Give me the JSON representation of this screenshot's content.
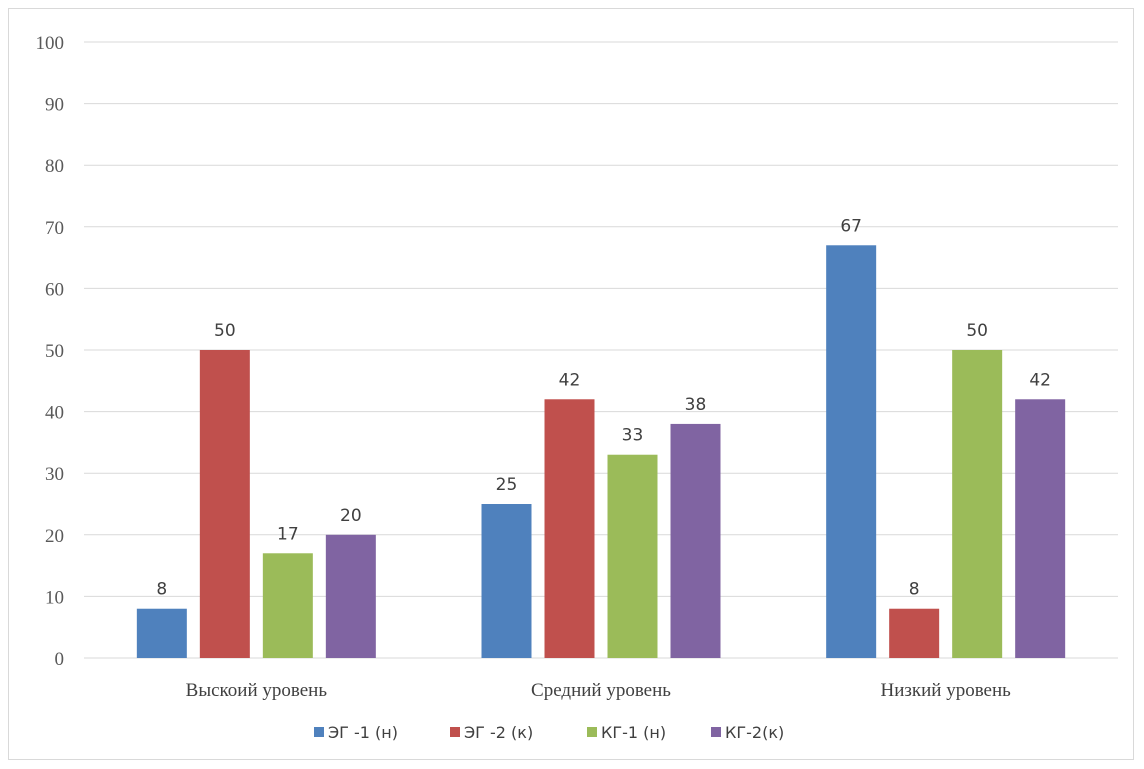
{
  "chart_data": {
    "type": "bar",
    "categories": [
      "Выскоий уровень",
      "Средний уровень",
      "Низкий уровень"
    ],
    "series": [
      {
        "name": "ЭГ -1 (н)",
        "color": "#4f81bd",
        "values": [
          8,
          25,
          67
        ]
      },
      {
        "name": "ЭГ -2 (к)",
        "color": "#c0504d",
        "values": [
          50,
          42,
          8
        ]
      },
      {
        "name": "КГ-1 (н)",
        "color": "#9bbb59",
        "values": [
          17,
          33,
          50
        ]
      },
      {
        "name": "КГ-2(к)",
        "color": "#8064a2",
        "values": [
          20,
          38,
          42
        ]
      }
    ],
    "ylim": [
      0,
      100
    ],
    "yticks": [
      0,
      10,
      20,
      30,
      40,
      50,
      60,
      70,
      80,
      90,
      100
    ],
    "grid": true,
    "legend_position": "bottom",
    "data_labels": true
  }
}
